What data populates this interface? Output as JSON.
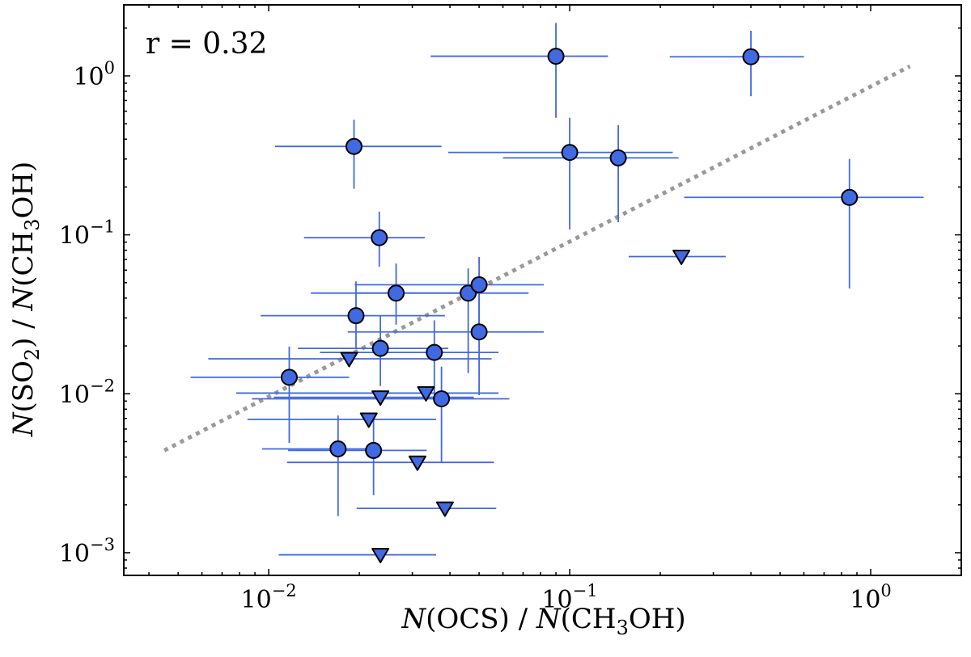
{
  "chart_data": {
    "type": "scatter",
    "xscale": "log",
    "yscale": "log",
    "xlim": [
      0.0033,
      2.0
    ],
    "ylim": [
      0.00072,
      2.8
    ],
    "x_ticks": [
      {
        "value": 0.01,
        "mantissa": "10",
        "exponent": "−2"
      },
      {
        "value": 0.1,
        "mantissa": "10",
        "exponent": "−1"
      },
      {
        "value": 1,
        "mantissa": "10",
        "exponent": "0"
      }
    ],
    "y_ticks": [
      {
        "value": 0.001,
        "mantissa": "10",
        "exponent": "−3"
      },
      {
        "value": 0.01,
        "mantissa": "10",
        "exponent": "−2"
      },
      {
        "value": 0.1,
        "mantissa": "10",
        "exponent": "−1"
      },
      {
        "value": 1,
        "mantissa": "10",
        "exponent": "0"
      }
    ],
    "xlabel": {
      "n1": "N",
      "mol1": "(OCS) / ",
      "n2": "N",
      "mol2a": "(CH",
      "sub": "3",
      "mol2b": "OH)"
    },
    "ylabel": {
      "n1": "N",
      "mol1a": "(SO",
      "sub1": "2",
      "mol1b": ") / ",
      "n2": "N",
      "mol2a": "(CH",
      "sub2": "3",
      "mol2b": "OH)"
    },
    "annotation": "r = 0.32",
    "colors": {
      "marker": "#4169e1",
      "errorbar": "#4169e1",
      "edge": "#000000",
      "fit": "#999999"
    },
    "fit_line": {
      "x": [
        0.0045,
        1.35
      ],
      "y": [
        0.0044,
        1.15
      ],
      "style": "dotted"
    },
    "detections": [
      {
        "x": 0.09,
        "y": 1.33,
        "xerr": [
          0.0345,
          0.134
        ],
        "yerr": [
          0.545,
          2.155
        ]
      },
      {
        "x": 0.4,
        "y": 1.32,
        "xerr": [
          0.215,
          0.6
        ],
        "yerr": [
          0.745,
          1.925
        ]
      },
      {
        "x": 0.0192,
        "y": 0.36,
        "xerr": [
          0.0105,
          0.0375
        ],
        "yerr": [
          0.195,
          0.53
        ]
      },
      {
        "x": 0.1,
        "y": 0.33,
        "xerr": [
          0.0395,
          0.22
        ],
        "yerr": [
          0.108,
          0.545
        ]
      },
      {
        "x": 0.145,
        "y": 0.305,
        "xerr": [
          0.06,
          0.23
        ],
        "yerr": [
          0.12,
          0.49
        ]
      },
      {
        "x": 0.85,
        "y": 0.172,
        "xerr": [
          0.24,
          1.5
        ],
        "yerr": [
          0.046,
          0.3
        ]
      },
      {
        "x": 0.0233,
        "y": 0.096,
        "xerr": [
          0.0131,
          0.033
        ],
        "yerr": [
          0.063,
          0.14
        ]
      },
      {
        "x": 0.0265,
        "y": 0.043,
        "xerr": [
          0.0138,
          0.0455
        ],
        "yerr": [
          0.0272,
          0.066
        ]
      },
      {
        "x": 0.046,
        "y": 0.043,
        "xerr": [
          0.0197,
          0.073
        ],
        "yerr": [
          0.0135,
          0.0615
        ]
      },
      {
        "x": 0.05,
        "y": 0.0485,
        "xerr": [
          0.0193,
          0.082
        ],
        "yerr": [
          0.0255,
          0.0725
        ]
      },
      {
        "x": 0.0195,
        "y": 0.031,
        "xerr": [
          0.0094,
          0.0385
        ],
        "yerr": [
          0.0193,
          0.051
        ]
      },
      {
        "x": 0.05,
        "y": 0.0245,
        "xerr": [
          0.0183,
          0.082
        ],
        "yerr": [
          0.0098,
          0.045
        ]
      },
      {
        "x": 0.0235,
        "y": 0.0193,
        "xerr": [
          0.0125,
          0.0395
        ],
        "yerr": [
          0.0112,
          0.031
        ]
      },
      {
        "x": 0.0355,
        "y": 0.0182,
        "xerr": [
          0.0148,
          0.058
        ],
        "yerr": [
          0.0098,
          0.029
        ]
      },
      {
        "x": 0.0117,
        "y": 0.0127,
        "xerr": [
          0.0055,
          0.0185
        ],
        "yerr": [
          0.0049,
          0.0198
        ]
      },
      {
        "x": 0.0375,
        "y": 0.0093,
        "xerr": [
          0.0088,
          0.063
        ],
        "yerr": [
          0.0037,
          0.0148
        ]
      },
      {
        "x": 0.017,
        "y": 0.0045,
        "xerr": [
          0.0095,
          0.0225
        ],
        "yerr": [
          0.0017,
          0.0073
        ]
      },
      {
        "x": 0.0223,
        "y": 0.0044,
        "xerr": [
          0.0116,
          0.0335
        ],
        "yerr": [
          0.0023,
          0.0069
        ]
      }
    ],
    "upper_limits": [
      {
        "x": 0.0185,
        "y": 0.0166,
        "xerr": [
          0.0063,
          0.055
        ]
      },
      {
        "x": 0.0235,
        "y": 0.0095,
        "xerr": [
          0.0104,
          0.048
        ]
      },
      {
        "x": 0.0333,
        "y": 0.0101,
        "xerr": [
          0.0078,
          0.058
        ]
      },
      {
        "x": 0.0215,
        "y": 0.0069,
        "xerr": [
          0.0085,
          0.036
        ]
      },
      {
        "x": 0.0312,
        "y": 0.0037,
        "xerr": [
          0.0115,
          0.056
        ]
      },
      {
        "x": 0.0385,
        "y": 0.0019,
        "xerr": [
          0.0196,
          0.057
        ]
      },
      {
        "x": 0.0235,
        "y": 0.00097,
        "xerr": [
          0.0108,
          0.036
        ]
      },
      {
        "x": 0.235,
        "y": 0.073,
        "xerr": [
          0.157,
          0.33
        ]
      }
    ]
  }
}
